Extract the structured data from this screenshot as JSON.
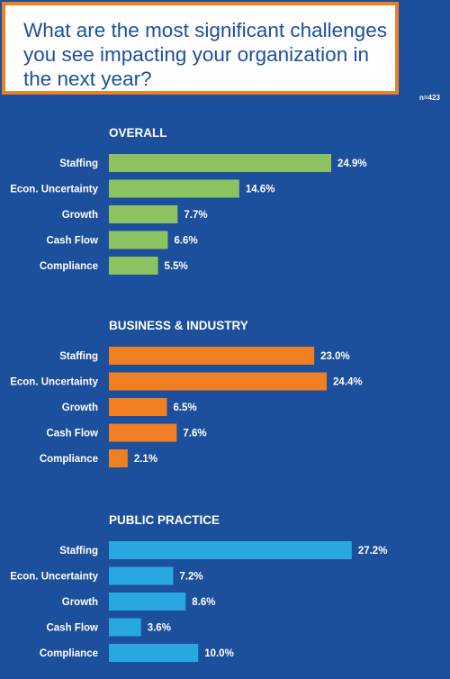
{
  "question": "What are the most significant challenges you see impacting your organization in the next year?",
  "sample_size": "n=423",
  "colors": {
    "background": "#1c4f9c",
    "overall": "#8dc260",
    "business": "#f07f24",
    "public": "#29a8e0",
    "border": "#f07f24"
  },
  "chart_data": [
    {
      "type": "bar",
      "orientation": "horizontal",
      "title": "OVERALL",
      "categories": [
        "Staffing",
        "Econ. Uncertainty",
        "Growth",
        "Cash Flow",
        "Compliance"
      ],
      "values": [
        24.9,
        14.6,
        7.7,
        6.6,
        5.5
      ],
      "value_labels": [
        "24.9%",
        "14.6%",
        "7.7%",
        "6.6%",
        "5.5%"
      ],
      "color": "#8dc260"
    },
    {
      "type": "bar",
      "orientation": "horizontal",
      "title": "BUSINESS & INDUSTRY",
      "categories": [
        "Staffing",
        "Econ. Uncertainty",
        "Growth",
        "Cash Flow",
        "Compliance"
      ],
      "values": [
        23.0,
        24.4,
        6.5,
        7.6,
        2.1
      ],
      "value_labels": [
        "23.0%",
        "24.4%",
        "6.5%",
        "7.6%",
        "2.1%"
      ],
      "color": "#f07f24"
    },
    {
      "type": "bar",
      "orientation": "horizontal",
      "title": "PUBLIC PRACTICE",
      "categories": [
        "Staffing",
        "Econ. Uncertainty",
        "Growth",
        "Cash Flow",
        "Compliance"
      ],
      "values": [
        27.2,
        7.2,
        8.6,
        3.6,
        10.0
      ],
      "value_labels": [
        "27.2%",
        "7.2%",
        "8.6%",
        "3.6%",
        "10.0%"
      ],
      "color": "#29a8e0"
    }
  ]
}
